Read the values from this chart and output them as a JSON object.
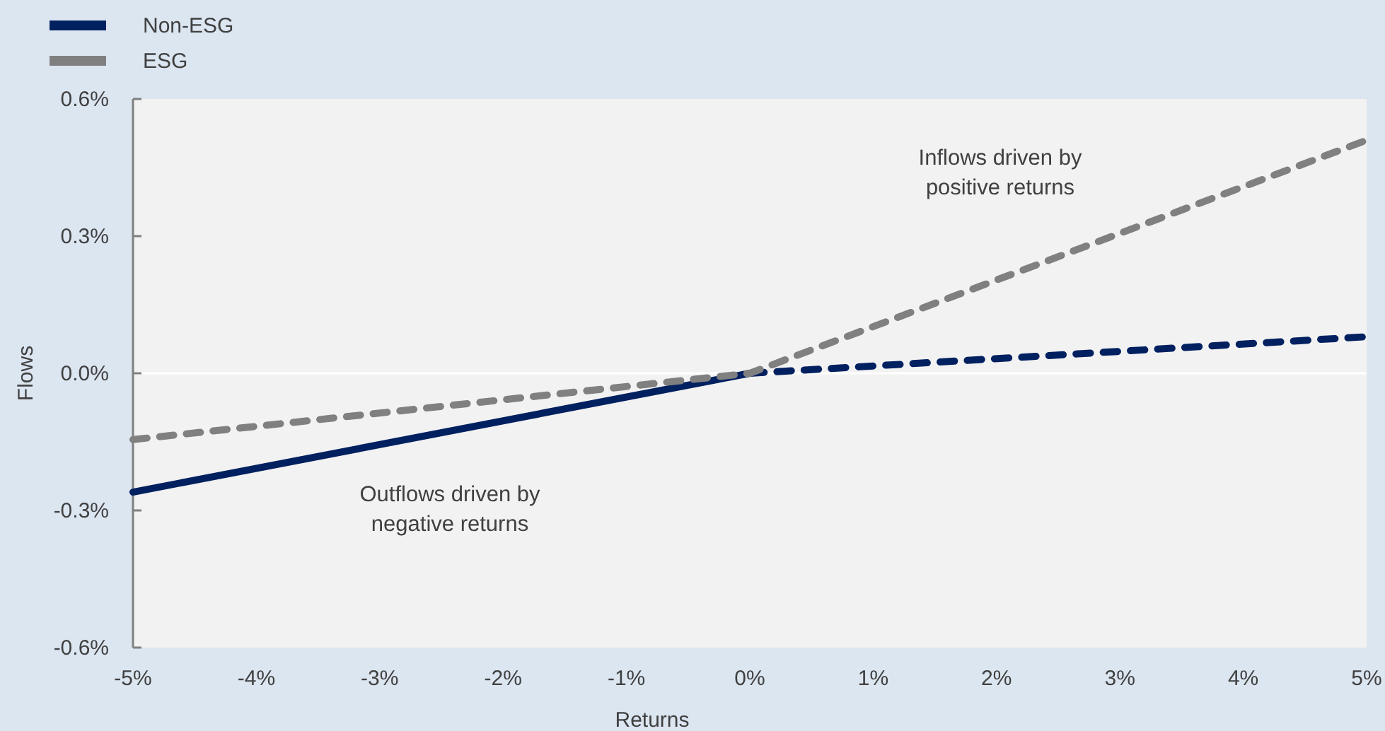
{
  "chart_data": {
    "type": "line",
    "xlabel": "Returns",
    "ylabel": "Flows",
    "xlim": [
      -5,
      5
    ],
    "ylim": [
      -0.6,
      0.6
    ],
    "xticks": [
      {
        "value": -5,
        "label": "-5%"
      },
      {
        "value": -4,
        "label": "-4%"
      },
      {
        "value": -3,
        "label": "-3%"
      },
      {
        "value": -2,
        "label": "-2%"
      },
      {
        "value": -1,
        "label": "-1%"
      },
      {
        "value": 0,
        "label": "0%"
      },
      {
        "value": 1,
        "label": "1%"
      },
      {
        "value": 2,
        "label": "2%"
      },
      {
        "value": 3,
        "label": "3%"
      },
      {
        "value": 4,
        "label": "4%"
      },
      {
        "value": 5,
        "label": "5%"
      }
    ],
    "yticks": [
      {
        "value": -0.6,
        "label": "-0.6%"
      },
      {
        "value": -0.3,
        "label": "-0.3%"
      },
      {
        "value": 0,
        "label": "0.0%"
      },
      {
        "value": 0.3,
        "label": "0.3%"
      },
      {
        "value": 0.6,
        "label": "0.6%"
      }
    ],
    "series": [
      {
        "name": "Non-ESG",
        "color": "#002060",
        "x": [
          -5,
          0
        ],
        "values": [
          -0.26,
          0
        ],
        "line_style": "solid"
      },
      {
        "color": "#002060",
        "x": [
          0,
          5
        ],
        "values": [
          0,
          0.08
        ],
        "line_style": "dashed"
      },
      {
        "name": "ESG",
        "color": "#808080",
        "x": [
          -5,
          0,
          5
        ],
        "values": [
          -0.145,
          0,
          0.51
        ],
        "line_style": "dashed"
      }
    ],
    "ref_lines": [
      {
        "axis": "y",
        "value": 0,
        "color": "#ffffff"
      }
    ],
    "annotations": [
      "Inflows driven by\npositive returns",
      "Outflows driven by\nnegative returns"
    ],
    "grid": false,
    "legend": "top left",
    "marker": "none"
  }
}
